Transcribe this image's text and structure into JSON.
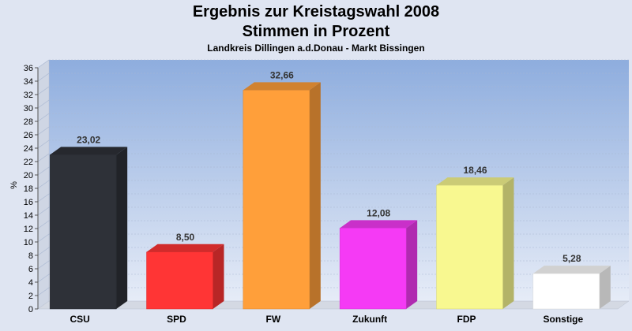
{
  "colors": {
    "page_background": "#dfe5f2",
    "plot_top": "#8eadde",
    "plot_bottom": "#e9eef8"
  },
  "chart_data": {
    "type": "bar",
    "title": "Ergebnis zur Kreistagswahl 2008",
    "subtitle": "Stimmen in Prozent",
    "caption": "Landkreis Dillingen a.d.Donau - Markt Bissingen",
    "ylabel": "%",
    "xlabel": "",
    "ylim": [
      0,
      36
    ],
    "ytick_step": 2,
    "grid": true,
    "legend": "none",
    "categories": [
      "CSU",
      "SPD",
      "FW",
      "Zukunft",
      "FDP",
      "Sonstige"
    ],
    "values": [
      23.02,
      8.5,
      32.66,
      12.08,
      18.46,
      5.28
    ],
    "value_labels": [
      "23,02",
      "8,50",
      "32,66",
      "12,08",
      "18,46",
      "5,28"
    ],
    "bar_colors": [
      "#2e3138",
      "#ff3535",
      "#ff9f3a",
      "#f53af5",
      "#f8f890",
      "#ffffff"
    ]
  }
}
